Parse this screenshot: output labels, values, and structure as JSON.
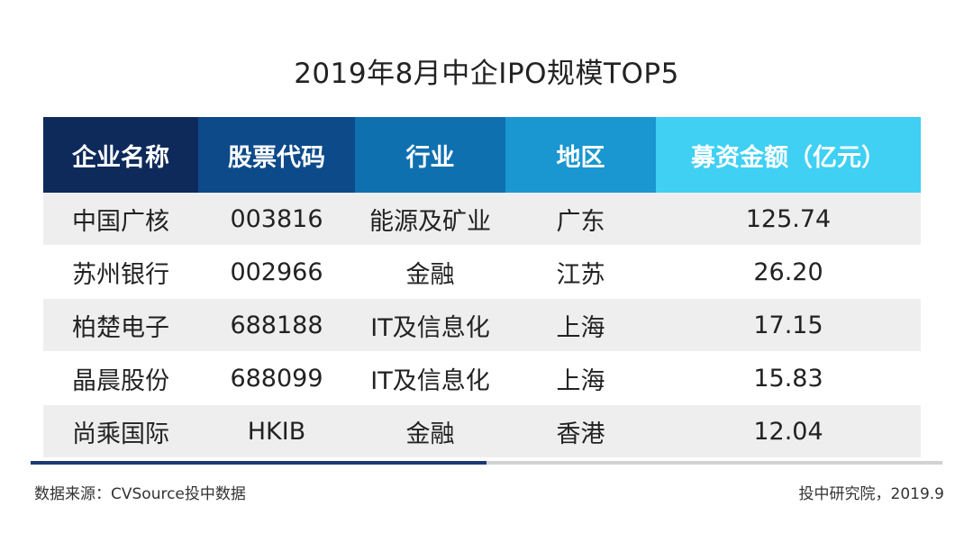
{
  "title": "2019年8月中企IPO规模TOP5",
  "table": {
    "headers": [
      {
        "label": "企业名称",
        "color": "#0e2a5b"
      },
      {
        "label": "股票代码",
        "color": "#0c4a8a"
      },
      {
        "label": "行业",
        "color": "#0f70b0"
      },
      {
        "label": "地区",
        "color": "#1a96d0"
      },
      {
        "label": "募资金额（亿元）",
        "color": "#3fd0f4"
      }
    ],
    "rows": [
      [
        "中国广核",
        "003816",
        "能源及矿业",
        "广东",
        "125.74"
      ],
      [
        "苏州银行",
        "002966",
        "金融",
        "江苏",
        "26.20"
      ],
      [
        "柏楚电子",
        "688188",
        "IT及信息化",
        "上海",
        "17.15"
      ],
      [
        "晶晨股份",
        "688099",
        "IT及信息化",
        "上海",
        "15.83"
      ],
      [
        "尚乘国际",
        "HKIB",
        "金融",
        "香港",
        "12.04"
      ]
    ]
  },
  "footer": {
    "source": "数据来源：CVSource投中数据",
    "credit": "投中研究院，2019.9"
  },
  "colors": {
    "rule_accent": "#1b3a72",
    "rule_base": "#d2d2d2",
    "row_stripe": "#eeeeee"
  }
}
